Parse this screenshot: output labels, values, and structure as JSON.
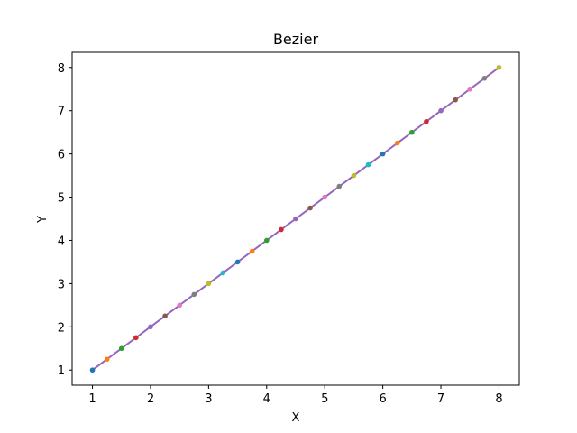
{
  "chart_data": {
    "type": "line",
    "title": "Bezier",
    "xlabel": "X",
    "ylabel": "Y",
    "xlim": [
      0.65,
      8.35
    ],
    "ylim": [
      0.65,
      8.35
    ],
    "xticks": [
      1,
      2,
      3,
      4,
      5,
      6,
      7,
      8
    ],
    "yticks": [
      1,
      2,
      3,
      4,
      5,
      6,
      7,
      8
    ],
    "grid": false,
    "line": {
      "x": [
        1,
        8
      ],
      "y": [
        1,
        8
      ],
      "color": "#9467bd"
    },
    "points": {
      "x": [
        1,
        1.25,
        1.5,
        1.75,
        2,
        2.25,
        2.5,
        2.75,
        3,
        3.25,
        3.5,
        3.75,
        4,
        4.25,
        4.5,
        4.75,
        5,
        5.25,
        5.5,
        5.75,
        6,
        6.25,
        6.5,
        6.75,
        7,
        7.25,
        7.5,
        7.75,
        8
      ],
      "y": [
        1,
        1.25,
        1.5,
        1.75,
        2,
        2.25,
        2.5,
        2.75,
        3,
        3.25,
        3.5,
        3.75,
        4,
        4.25,
        4.5,
        4.75,
        5,
        5.25,
        5.5,
        5.75,
        6,
        6.25,
        6.5,
        6.75,
        7,
        7.25,
        7.5,
        7.75,
        8
      ]
    },
    "marker_colors": [
      "#1f77b4",
      "#ff7f0e",
      "#2ca02c",
      "#d62728",
      "#9467bd",
      "#8c564b",
      "#e377c2",
      "#7f7f7f",
      "#bcbd22",
      "#17becf"
    ]
  }
}
